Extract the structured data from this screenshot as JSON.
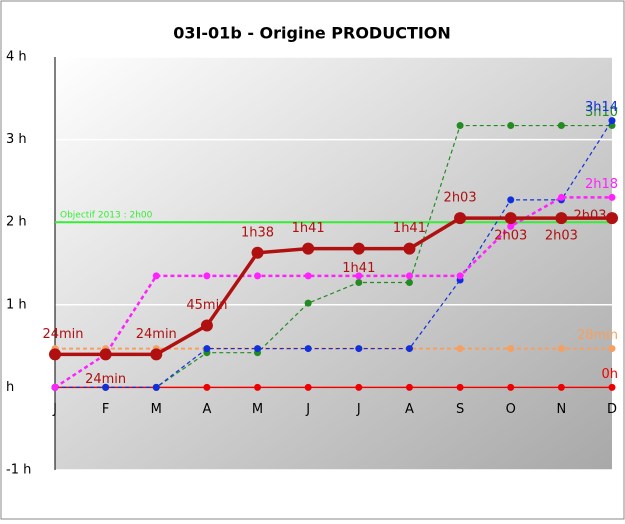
{
  "chart_data": {
    "type": "line",
    "title": "03I-01b - Origine PRODUCTION",
    "categories": [
      "J",
      "F",
      "M",
      "A",
      "M",
      "J",
      "J",
      "A",
      "S",
      "O",
      "N",
      "D"
    ],
    "ylim": [
      -1,
      4
    ],
    "yticks": [
      {
        "value": -1,
        "label": "-1 h"
      },
      {
        "value": 0,
        "label": "h"
      },
      {
        "value": 1,
        "label": "1 h"
      },
      {
        "value": 2,
        "label": "2 h"
      },
      {
        "value": 3,
        "label": "3 h"
      },
      {
        "value": 4,
        "label": "4 h"
      }
    ],
    "grid": true,
    "objective": {
      "label": "Objectif 2013 : 2h00",
      "value": 2,
      "color": "#33ee33"
    },
    "series": [
      {
        "color": "#ee0000",
        "dash": "none",
        "width": 1.5,
        "values": [
          0,
          0,
          0,
          0,
          0,
          0,
          0,
          0,
          0,
          0,
          0,
          0
        ],
        "end_label": "0h"
      },
      {
        "color": "#f5a060",
        "dash": "4 3",
        "width": 2,
        "values": [
          0.47,
          0.47,
          0.47,
          0.47,
          0.47,
          0.47,
          0.47,
          0.47,
          0.47,
          0.47,
          0.47,
          0.47
        ],
        "end_label": "28min"
      },
      {
        "color": "#228b22",
        "dash": "4 3",
        "width": 1.2,
        "values": [
          0,
          0,
          0,
          0.42,
          0.42,
          1.02,
          1.27,
          1.27,
          3.17,
          3.17,
          3.17,
          3.17
        ],
        "end_label": "3h10"
      },
      {
        "color": "#1030dd",
        "dash": "4 3",
        "width": 1.2,
        "values": [
          0,
          0,
          0,
          0.47,
          0.47,
          0.47,
          0.47,
          0.47,
          1.3,
          2.27,
          2.27,
          3.23
        ],
        "end_label": "3h14"
      },
      {
        "color": "#ff22ff",
        "dash": "4 3",
        "width": 2.5,
        "values": [
          0,
          0.4,
          1.35,
          1.35,
          1.35,
          1.35,
          1.35,
          1.35,
          1.35,
          1.95,
          2.3,
          2.3
        ],
        "end_label": "2h18"
      },
      {
        "color": "#b01010",
        "dash": "none",
        "width": 3.5,
        "values": [
          0.4,
          0.4,
          0.4,
          0.75,
          1.63,
          1.68,
          1.68,
          1.68,
          2.05,
          2.05,
          2.05,
          2.05
        ],
        "value_labels": [
          "24min",
          "24min",
          "24min",
          "45min",
          "1h38",
          "1h41",
          "1h41",
          "1h41",
          "2h03",
          "2h03",
          "2h03",
          "2h03"
        ]
      }
    ]
  }
}
